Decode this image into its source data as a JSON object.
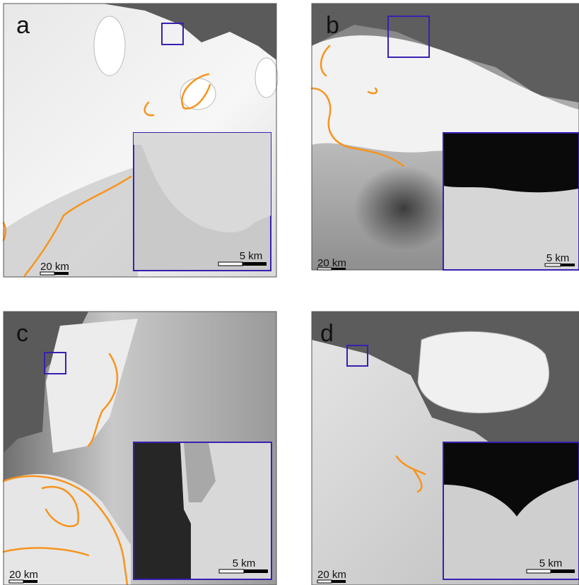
{
  "panels": [
    {
      "label": "a",
      "scale_large": "20 km",
      "scale_small": "5 km"
    },
    {
      "label": "b",
      "scale_large": "20 km",
      "scale_small": "5 km"
    },
    {
      "label": "c",
      "scale_large": "20 km",
      "scale_small": "5 km"
    },
    {
      "label": "d",
      "scale_large": "20 km",
      "scale_small": "5 km"
    }
  ]
}
